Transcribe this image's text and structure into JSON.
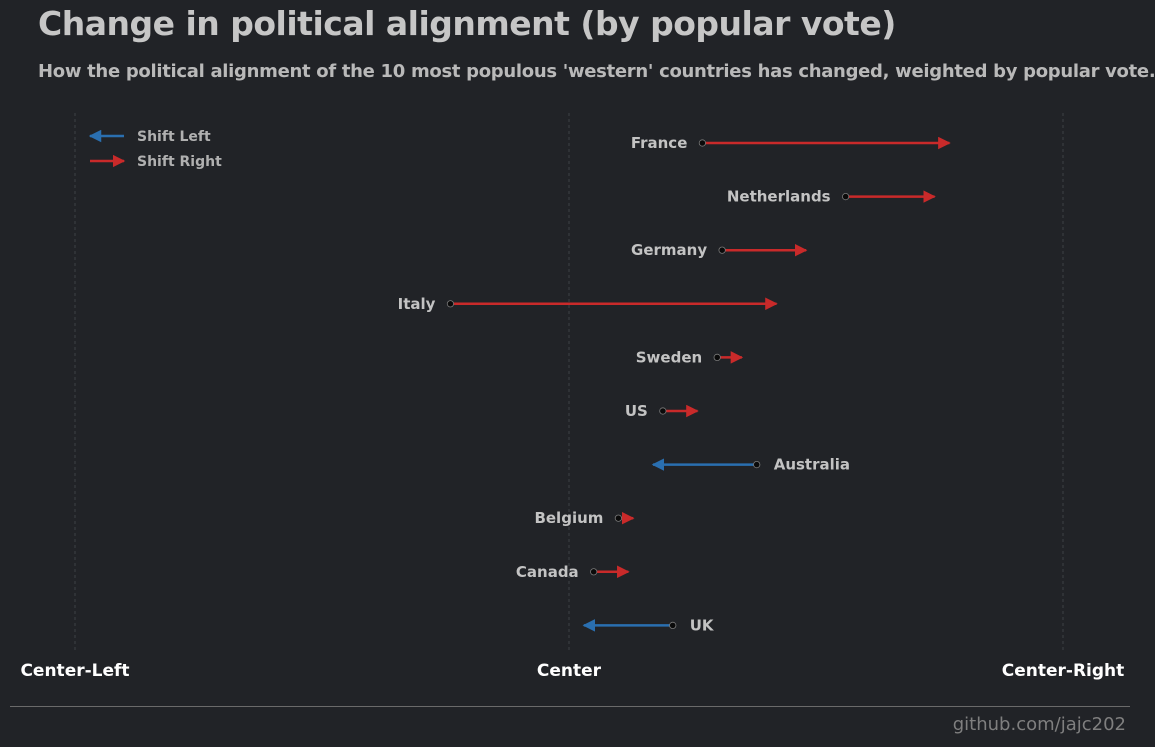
{
  "title": "Change in political alignment (by popular vote)",
  "subtitle": "How the political alignment of the 10 most populous 'western' countries has changed, weighted by popular vote.",
  "credit": "github.com/jajc202",
  "colors": {
    "left": "#2a6fb0",
    "right": "#c92a2a",
    "background": "#212327"
  },
  "chart_data": {
    "type": "arrow-dot",
    "x_axis": {
      "range": [
        -1,
        1
      ],
      "tick_values": [
        -1,
        0,
        1
      ],
      "tick_labels": [
        "Center-Left",
        "Center",
        "Center-Right"
      ],
      "grid": "vertical dashed"
    },
    "legend": {
      "position": "top-left",
      "items": [
        {
          "label": "Shift Left",
          "color": "#2a6fb0"
        },
        {
          "label": "Shift Right",
          "color": "#c92a2a"
        }
      ]
    },
    "series": [
      {
        "country": "France",
        "from": 0.27,
        "to": 0.77
      },
      {
        "country": "Netherlands",
        "from": 0.56,
        "to": 0.74
      },
      {
        "country": "Germany",
        "from": 0.31,
        "to": 0.48
      },
      {
        "country": "Italy",
        "from": -0.24,
        "to": 0.42
      },
      {
        "country": "Sweden",
        "from": 0.3,
        "to": 0.35
      },
      {
        "country": "US",
        "from": 0.19,
        "to": 0.26
      },
      {
        "country": "Australia",
        "from": 0.38,
        "to": 0.17
      },
      {
        "country": "Belgium",
        "from": 0.1,
        "to": 0.13
      },
      {
        "country": "Canada",
        "from": 0.05,
        "to": 0.12
      },
      {
        "country": "UK",
        "from": 0.21,
        "to": 0.03
      }
    ]
  }
}
